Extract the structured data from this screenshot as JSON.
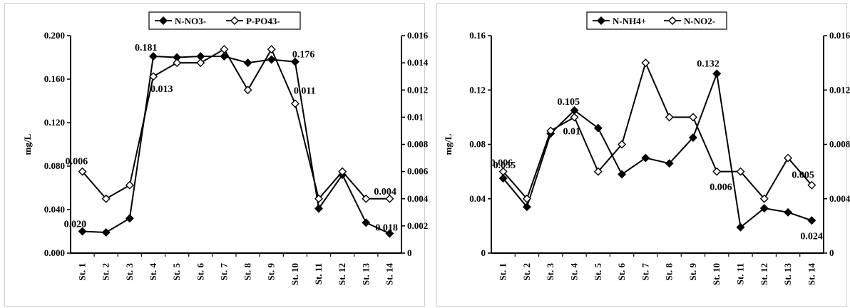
{
  "chart_data": [
    {
      "type": "line",
      "categories": [
        "St. 1",
        "St. 2",
        "St. 3",
        "St. 4",
        "St. 5",
        "St. 6",
        "St. 7",
        "St. 8",
        "St. 9",
        "St. 10",
        "St. 11",
        "St. 12",
        "St. 13",
        "St. 14"
      ],
      "ylabel": "mg/L",
      "y_left": {
        "ylim": [
          0,
          0.2
        ],
        "ticks": [
          "0.000",
          "0.040",
          "0.080",
          "0.120",
          "0.160",
          "0.200"
        ]
      },
      "y_right": {
        "ylim": [
          0,
          0.016
        ],
        "ticks": [
          "0",
          "0.002",
          "0.004",
          "0.006",
          "0.008",
          "0.01",
          "0.012",
          "0.014",
          "0.016"
        ]
      },
      "legend_position": "top-center",
      "grid": false,
      "series": [
        {
          "name": "N-NO3-",
          "axis": "left",
          "marker": "filled-diamond",
          "color": "#000000",
          "values": [
            0.02,
            0.019,
            0.032,
            0.181,
            0.18,
            0.181,
            0.181,
            0.175,
            0.178,
            0.176,
            0.041,
            0.072,
            0.028,
            0.018
          ]
        },
        {
          "name": "P-PO43-",
          "axis": "right",
          "marker": "open-diamond",
          "color": "#000000",
          "values": [
            0.006,
            0.004,
            0.005,
            0.013,
            0.014,
            0.014,
            0.015,
            0.012,
            0.015,
            0.011,
            0.004,
            0.006,
            0.004,
            0.004
          ]
        }
      ],
      "annotations": [
        {
          "text": "0.181",
          "category": "St. 4",
          "series": 0
        },
        {
          "text": "0.176",
          "category": "St. 10",
          "series": 0
        },
        {
          "text": "0.013",
          "category": "St. 4",
          "series": 1
        },
        {
          "text": "0.011",
          "category": "St. 10",
          "series": 1
        },
        {
          "text": "0.006",
          "category": "St. 1",
          "series": 1
        },
        {
          "text": "0.020",
          "category": "St. 1",
          "series": 0
        },
        {
          "text": "0.018",
          "category": "St. 14",
          "series": 0
        },
        {
          "text": "0.004",
          "category": "St. 14",
          "series": 1
        }
      ]
    },
    {
      "type": "line",
      "categories": [
        "St. 1",
        "St. 2",
        "St. 3",
        "St. 4",
        "St. 5",
        "St. 6",
        "St. 7",
        "St. 8",
        "St. 9",
        "St. 10",
        "St. 11",
        "St. 12",
        "St. 13",
        "St. 14"
      ],
      "ylabel": "mg/L",
      "y_left": {
        "ylim": [
          0,
          0.16
        ],
        "ticks": [
          "0",
          "0.04",
          "0.08",
          "0.12",
          "0.16"
        ]
      },
      "y_right": {
        "ylim": [
          0,
          0.016
        ],
        "ticks": [
          "0",
          "0.004",
          "0.008",
          "0.012",
          "0.016"
        ]
      },
      "legend_position": "top-center",
      "grid": false,
      "series": [
        {
          "name": "N-NH4+",
          "axis": "left",
          "marker": "filled-diamond",
          "color": "#000000",
          "values": [
            0.055,
            0.034,
            0.088,
            0.105,
            0.092,
            0.058,
            0.07,
            0.066,
            0.085,
            0.132,
            0.019,
            0.033,
            0.03,
            0.024
          ]
        },
        {
          "name": "N-NO2-",
          "axis": "right",
          "marker": "open-diamond",
          "color": "#000000",
          "values": [
            0.006,
            0.004,
            0.009,
            0.01,
            0.006,
            0.008,
            0.014,
            0.01,
            0.01,
            0.006,
            0.006,
            0.004,
            0.007,
            0.005
          ]
        }
      ],
      "annotations": [
        {
          "text": "0.105",
          "category": "St. 4",
          "series": 0
        },
        {
          "text": "0.132",
          "category": "St. 10",
          "series": 0
        },
        {
          "text": "0.01",
          "category": "St. 4",
          "series": 1
        },
        {
          "text": "0.006",
          "category": "St. 1",
          "series": 1
        },
        {
          "text": "0.055",
          "category": "St. 1",
          "series": 0
        },
        {
          "text": "0.006",
          "category": "St. 10",
          "series": 1
        },
        {
          "text": "0.005",
          "category": "St. 14",
          "series": 1
        },
        {
          "text": "0.024",
          "category": "St. 14",
          "series": 0
        }
      ]
    }
  ]
}
